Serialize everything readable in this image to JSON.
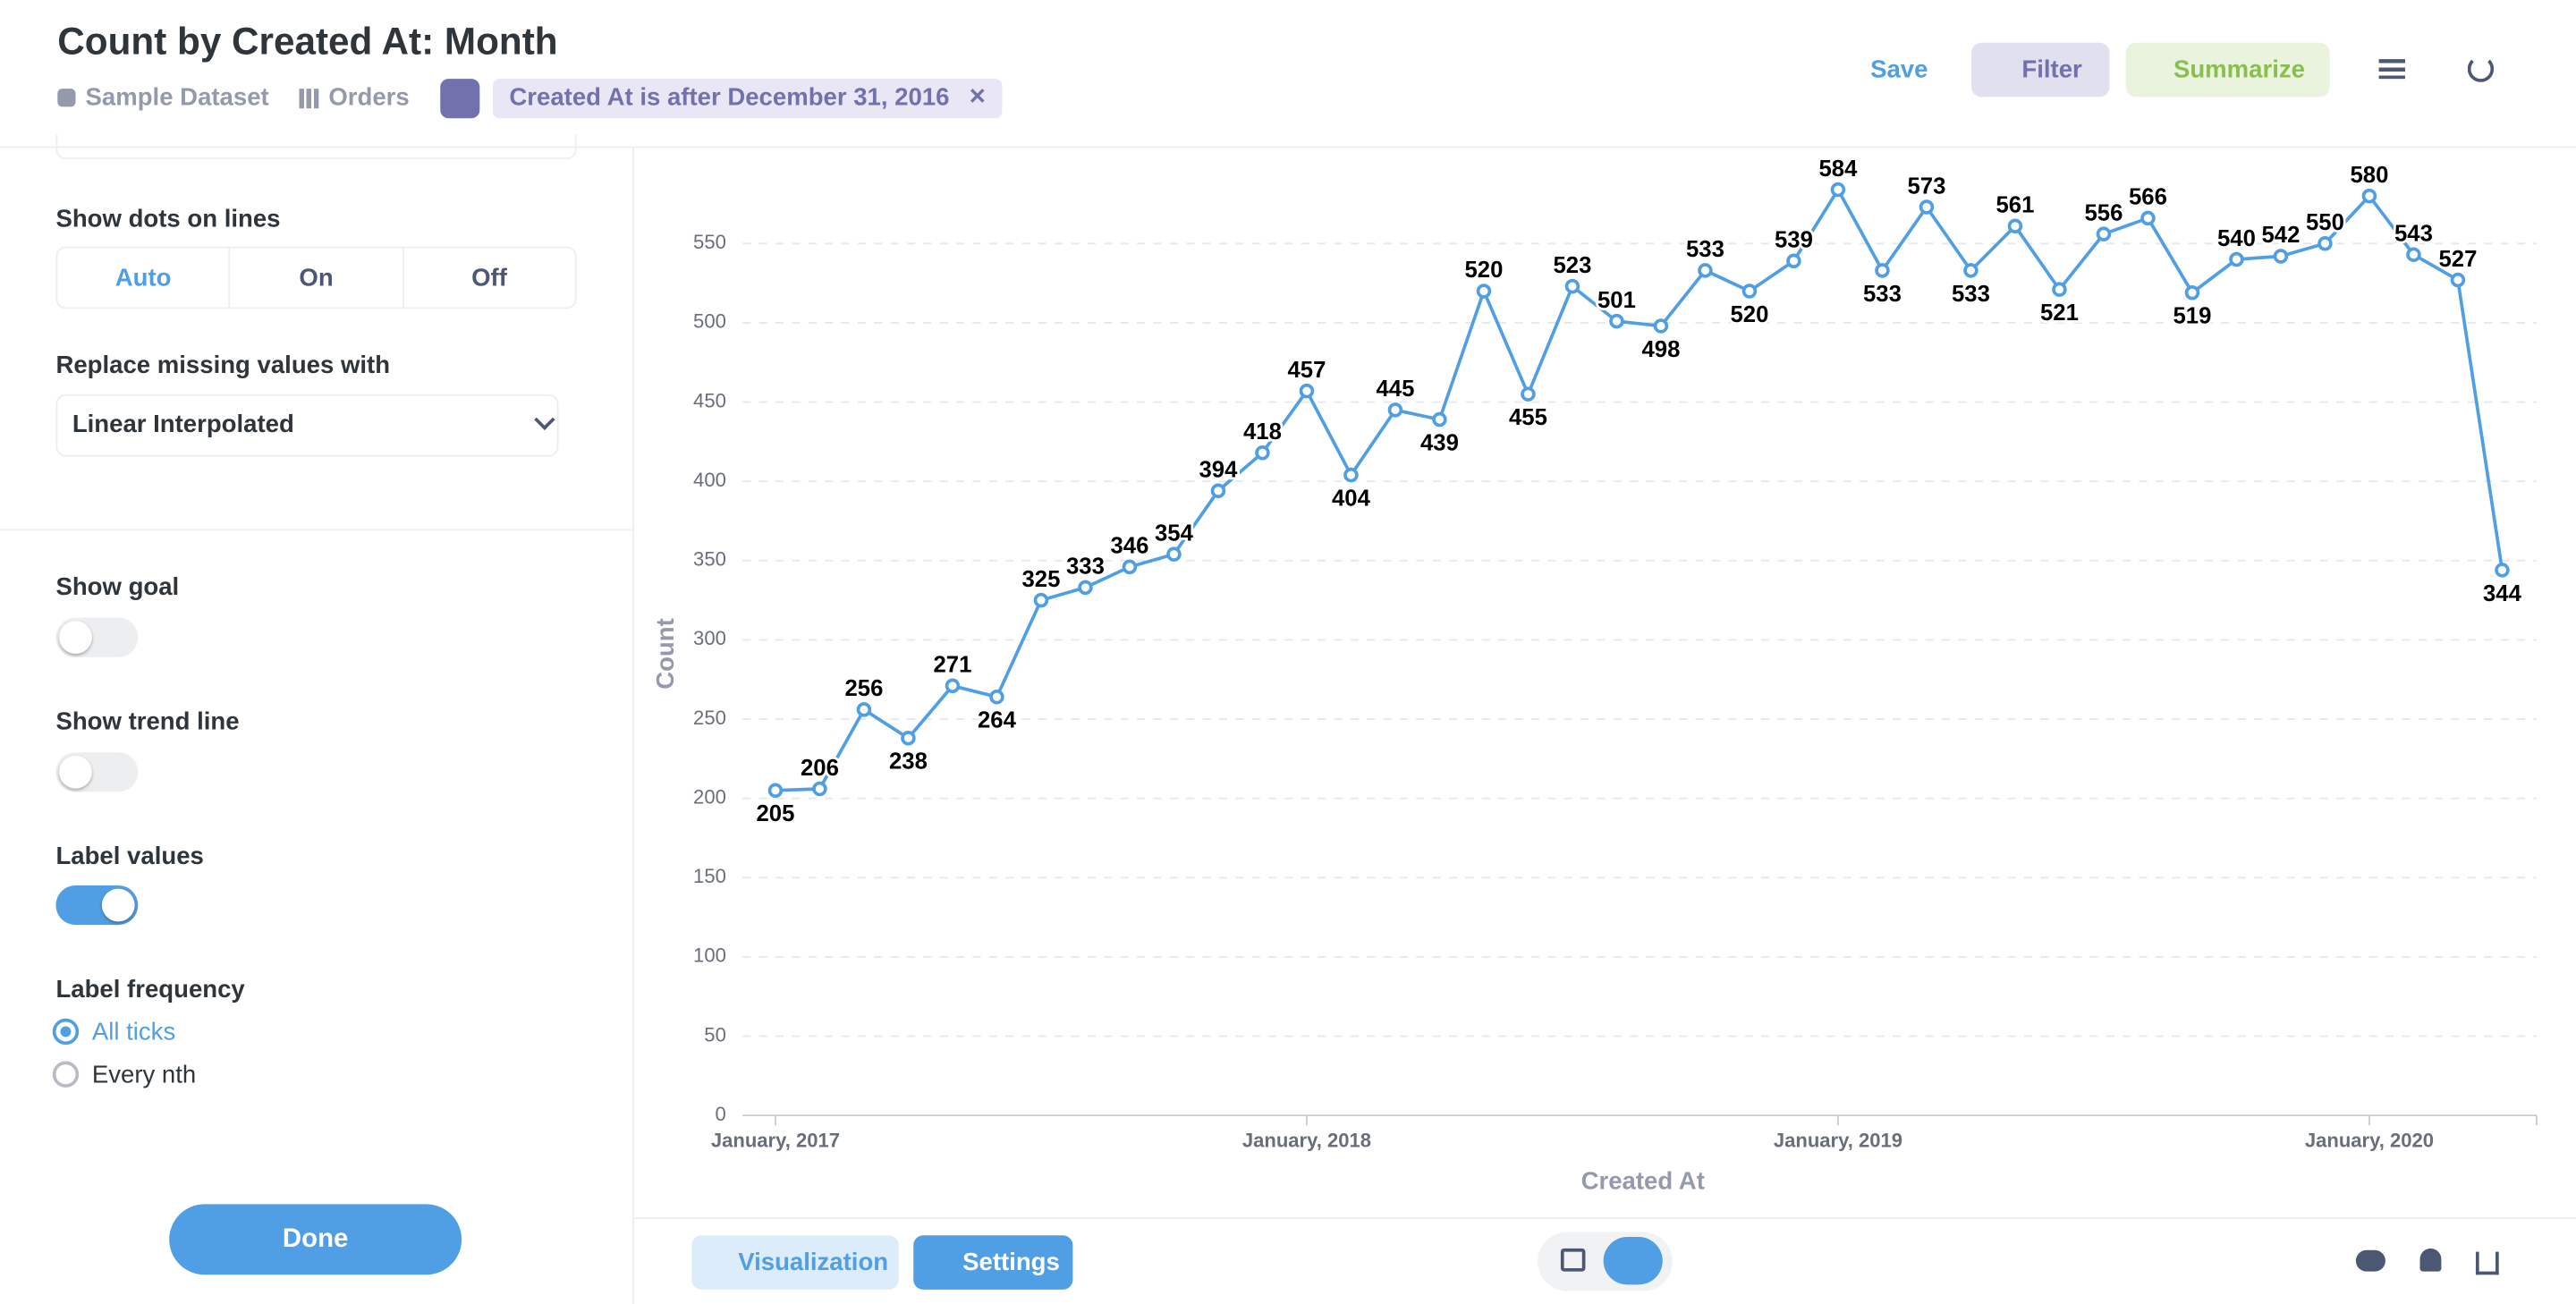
{
  "header": {
    "title": "Count by Created At: Month",
    "database": "Sample Dataset",
    "table": "Orders",
    "filter": "Created At is after December 31, 2016",
    "actions": [
      "Save",
      "Filter",
      "Summarize"
    ]
  },
  "sidebar": {
    "dots_label": "Show dots on lines",
    "dots_options": [
      "Auto",
      "On",
      "Off"
    ],
    "missing_label": "Replace missing values with",
    "missing_value": "Linear Interpolated",
    "goal_label": "Show goal",
    "trend_label": "Show trend line",
    "label_values": "Label values",
    "label_frequency": "Label frequency",
    "frequency_options": [
      "All ticks",
      "Every nth"
    ],
    "done": "Done"
  },
  "footer": {
    "visualization": "Visualization",
    "settings": "Settings"
  },
  "chart_data": {
    "type": "line",
    "x_label": "Created At",
    "y_label": "Count",
    "color": "#509ee3",
    "categories": [
      "January, 2017",
      null,
      null,
      null,
      null,
      null,
      null,
      null,
      null,
      null,
      null,
      null,
      "January, 2018",
      null,
      null,
      null,
      null,
      null,
      null,
      null,
      null,
      null,
      null,
      null,
      "January, 2019",
      null,
      null,
      null,
      null,
      null,
      null,
      null,
      null,
      null,
      null,
      null,
      "January, 2020",
      null,
      null,
      null
    ],
    "values": [
      205,
      206,
      256,
      238,
      271,
      264,
      325,
      333,
      346,
      354,
      394,
      418,
      457,
      404,
      445,
      439,
      520,
      455,
      523,
      501,
      498,
      533,
      520,
      539,
      584,
      533,
      573,
      533,
      561,
      521,
      556,
      566,
      519,
      540,
      542,
      550,
      580,
      543,
      527,
      344
    ],
    "ylim": [
      0,
      600
    ],
    "yticks": [
      0,
      50,
      100,
      150,
      200,
      250,
      300,
      350,
      400,
      450,
      500,
      550
    ],
    "grid": true
  }
}
